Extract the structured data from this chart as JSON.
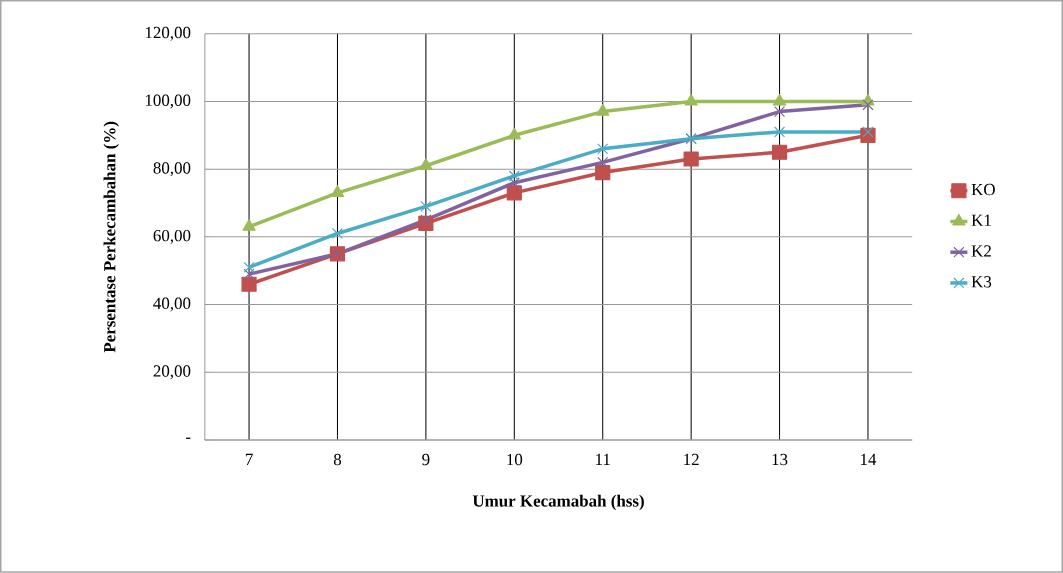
{
  "chart_data": {
    "type": "line",
    "xlabel": "Umur Kecamabah (hss)",
    "ylabel": "Persentase Perkecambahan (%)",
    "categories": [
      "7",
      "8",
      "9",
      "10",
      "11",
      "12",
      "13",
      "14"
    ],
    "series": [
      {
        "name": "KO",
        "color": "#c0504d",
        "marker": "square",
        "values": [
          46,
          55,
          64,
          73,
          79,
          83,
          85,
          90
        ]
      },
      {
        "name": "K1",
        "color": "#9bbb59",
        "marker": "triangle",
        "values": [
          63,
          73,
          81,
          90,
          97,
          100,
          100,
          100
        ]
      },
      {
        "name": "K2",
        "color": "#8064a2",
        "marker": "cross",
        "values": [
          49,
          55,
          65,
          76,
          82,
          89,
          97,
          99
        ]
      },
      {
        "name": "K3",
        "color": "#4bacc6",
        "marker": "cross",
        "values": [
          51,
          61,
          69,
          78,
          86,
          89,
          91,
          91
        ]
      }
    ],
    "ylim": [
      0,
      120
    ],
    "yticks": [
      {
        "value": 0,
        "label": "-"
      },
      {
        "value": 20,
        "label": "20,00"
      },
      {
        "value": 40,
        "label": "40,00"
      },
      {
        "value": 60,
        "label": "60,00"
      },
      {
        "value": 80,
        "label": "80,00"
      },
      {
        "value": 100,
        "label": "100,00"
      },
      {
        "value": 120,
        "label": "120,00"
      }
    ],
    "grid": true,
    "legend": "right",
    "line_style": "solid"
  }
}
